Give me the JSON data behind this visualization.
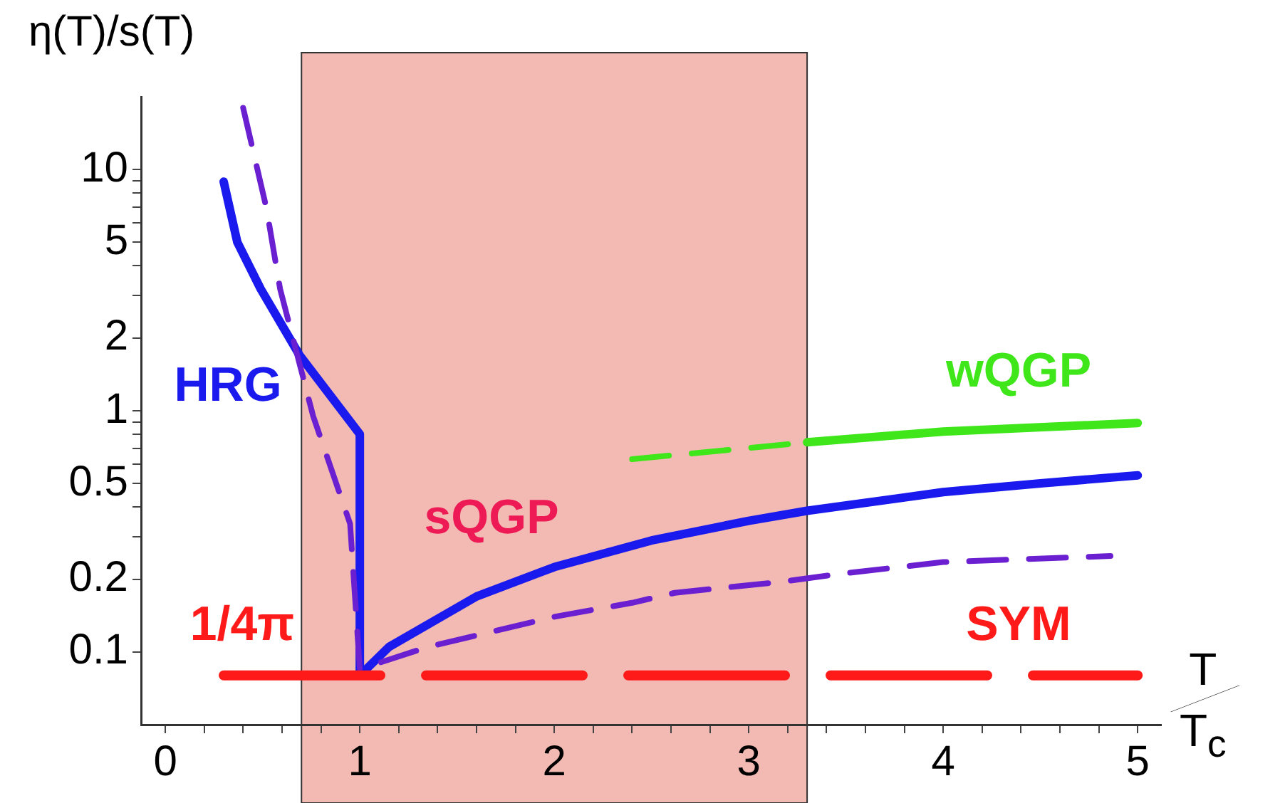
{
  "chart_data": {
    "type": "line",
    "xlabel": "T/T$_{c}$",
    "ylabel": "η(T)/s(T)",
    "log": "y",
    "grid": false,
    "legend": false,
    "marker": "none",
    "xlim": [
      -0.125,
      5.12
    ],
    "ylim": [
      0.05,
      20
    ],
    "xticks": [
      0,
      {
        "value": 0.2,
        "label": null
      },
      {
        "value": 0.4,
        "label": null
      },
      {
        "value": 0.6,
        "label": null
      },
      {
        "value": 0.8,
        "label": null
      },
      1,
      {
        "value": 1.2,
        "label": null
      },
      {
        "value": 1.4,
        "label": null
      },
      {
        "value": 1.6,
        "label": null
      },
      {
        "value": 1.8,
        "label": null
      },
      2,
      {
        "value": 2.2,
        "label": null
      },
      {
        "value": 2.4,
        "label": null
      },
      {
        "value": 2.6,
        "label": null
      },
      {
        "value": 2.8,
        "label": null
      },
      3,
      {
        "value": 3.2,
        "label": null
      },
      {
        "value": 3.4,
        "label": null
      },
      {
        "value": 3.6,
        "label": null
      },
      {
        "value": 3.8,
        "label": null
      },
      4,
      {
        "value": 4.2,
        "label": null
      },
      {
        "value": 4.4,
        "label": null
      },
      {
        "value": 4.6,
        "label": null
      },
      {
        "value": 4.8,
        "label": null
      },
      5
    ],
    "yticks": [
      0.1,
      0.2,
      {
        "value": 0.3,
        "label": null
      },
      {
        "value": 0.4,
        "label": null
      },
      0.5,
      {
        "value": 0.6,
        "label": null
      },
      {
        "value": 0.7,
        "label": null
      },
      {
        "value": 0.8,
        "label": null
      },
      {
        "value": 0.9,
        "label": null
      },
      1,
      2,
      {
        "value": 3,
        "label": null
      },
      {
        "value": 4,
        "label": null
      },
      5,
      {
        "value": 6,
        "label": null
      },
      {
        "value": 7,
        "label": null
      },
      {
        "value": 8,
        "label": null
      },
      {
        "value": 9,
        "label": null
      },
      10
    ],
    "bands": [
      {
        "axis": "x",
        "from": 0.7,
        "to": 3.3,
        "color": "#f2bab3"
      }
    ],
    "series": [
      {
        "color": "#ff1a1a",
        "line_style": "dashed",
        "x": [
          0.3,
          5.0
        ],
        "values": [
          0.08,
          0.08
        ]
      },
      {
        "color": "#6a1fd0",
        "line_style": "dashed",
        "x": [
          0.4,
          0.52,
          0.59,
          0.76,
          0.95,
          1.0,
          1.35,
          2.0,
          2.4,
          2.62,
          3.18,
          3.45,
          4.0,
          4.86
        ],
        "values": [
          18,
          6.9,
          3.2,
          0.95,
          0.34,
          0.085,
          0.105,
          0.14,
          0.16,
          0.176,
          0.196,
          0.21,
          0.236,
          0.25
        ]
      },
      {
        "color": "#1a1aee",
        "line_style": "solid",
        "x": [
          0.3,
          0.37,
          0.49,
          0.69,
          1.0,
          1.0,
          1.15,
          1.6,
          2.0,
          2.5,
          3.0,
          3.3,
          4.0,
          4.5,
          5.0
        ],
        "values": [
          8.9,
          5.0,
          3.2,
          1.7,
          0.8,
          0.08,
          0.105,
          0.17,
          0.225,
          0.29,
          0.35,
          0.385,
          0.46,
          0.5,
          0.54
        ]
      },
      {
        "color": "#3ee61a",
        "line_style": "dashed",
        "x": [
          2.4,
          3.3
        ],
        "values": [
          0.63,
          0.74
        ]
      },
      {
        "color": "#3ee61a",
        "line_style": "solid",
        "x": [
          3.3,
          4.0,
          5.0
        ],
        "values": [
          0.74,
          0.82,
          0.89
        ]
      }
    ],
    "annotations": [
      "HRG",
      "sQGP",
      "wQGP",
      "SYM",
      "1/4π"
    ]
  }
}
